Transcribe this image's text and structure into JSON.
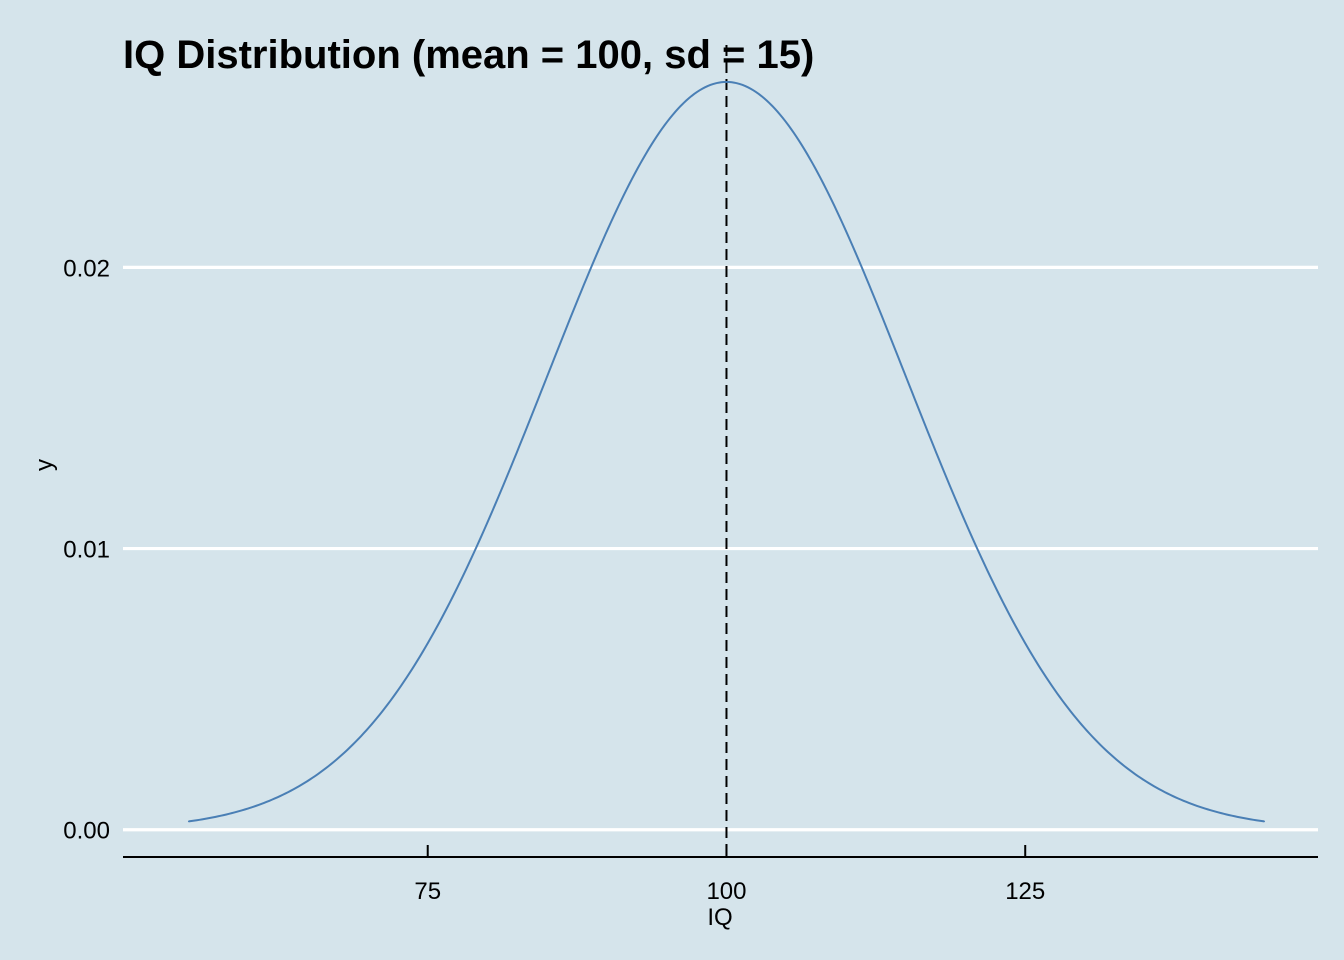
{
  "chart_data": {
    "type": "line",
    "title": "IQ Distribution (mean = 100, sd = 15)",
    "xlabel": "IQ",
    "ylabel": "y",
    "mean": 100,
    "sd": 15,
    "x_range": [
      55,
      145
    ],
    "xlim": [
      49.5,
      149.5
    ],
    "ylim": [
      -0.00097,
      0.02791
    ],
    "x_ticks": [
      75,
      100,
      125
    ],
    "x_tick_labels": [
      "75",
      "100",
      "125"
    ],
    "y_ticks": [
      0,
      0.01,
      0.02
    ],
    "y_tick_labels": [
      "0.00",
      "0.01",
      "0.02"
    ],
    "grid": "horizontal major",
    "reference_line": {
      "x": 100,
      "style": "dashed",
      "color": "#000000"
    },
    "series": [
      {
        "x": [
          55,
          60,
          65,
          70,
          75,
          80,
          85,
          90,
          95,
          100,
          105,
          110,
          115,
          120,
          125,
          130,
          135,
          140,
          145
        ],
        "y": [
          0.000295,
          0.000759,
          0.001748,
          0.003599,
          0.006632,
          0.010934,
          0.016131,
          0.021297,
          0.025159,
          0.026596,
          0.025159,
          0.021297,
          0.016131,
          0.010934,
          0.006632,
          0.003599,
          0.001748,
          0.000759,
          0.000295
        ]
      }
    ],
    "colors": {
      "line": "#4a7fb5",
      "background": "#d5e4eb",
      "grid": "#ffffff",
      "axis": "#000000"
    }
  }
}
